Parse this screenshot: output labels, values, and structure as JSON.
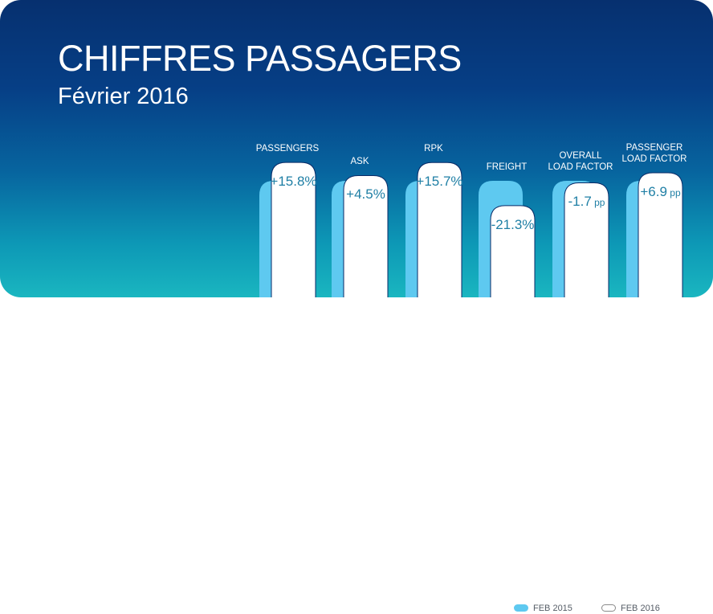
{
  "chart_data": {
    "type": "bar",
    "title": "CHIFFRES PASSAGERS",
    "subtitle": "Février 2016",
    "categories": [
      [
        "PASSENGERS"
      ],
      [
        "ASK"
      ],
      [
        "RPK"
      ],
      [
        "FREIGHT"
      ],
      [
        "OVERALL",
        "LOAD FACTOR"
      ],
      [
        "PASSENGER",
        "LOAD FACTOR"
      ]
    ],
    "series": [
      {
        "name": "FEB 2015",
        "values": [
          100,
          100,
          100,
          100,
          100,
          100
        ]
      },
      {
        "name": "FEB 2016",
        "values": [
          115.8,
          104.5,
          115.7,
          78.7,
          98.3,
          106.9
        ]
      }
    ],
    "changes": [
      {
        "value": "+15.8%",
        "unit": ""
      },
      {
        "value": "+4.5%",
        "unit": ""
      },
      {
        "value": "+15.7%",
        "unit": ""
      },
      {
        "value": "-21.3%",
        "unit": ""
      },
      {
        "value": "-1.7",
        "unit": "pp"
      },
      {
        "value": "+6.9",
        "unit": "pp"
      }
    ],
    "legend": [
      "FEB 2015",
      "FEB 2016"
    ],
    "legend_position": "bottom-right",
    "colors": {
      "feb_2015": "#5ec9f0",
      "feb_2016": "#ffffff",
      "value_text": "#1f7fa5"
    }
  }
}
